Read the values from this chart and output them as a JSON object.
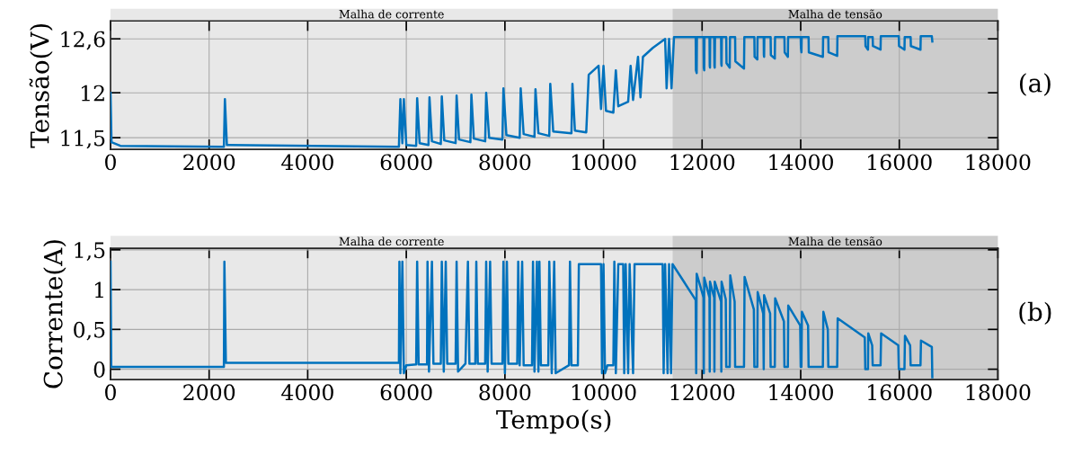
{
  "chart_data": [
    {
      "type": "line",
      "ylabel": "Tensão(V)",
      "annotations": [
        "(a)"
      ],
      "grid": true,
      "xlim": [
        0,
        18000
      ],
      "xticks": [
        0,
        2000,
        4000,
        6000,
        8000,
        10000,
        12000,
        14000,
        16000,
        18000
      ],
      "ylim": [
        11.37,
        12.8
      ],
      "yticks": [
        {
          "value": 11.5,
          "label": "11,5"
        },
        12,
        {
          "value": 12.6,
          "label": "12,6"
        }
      ],
      "bands": [
        {
          "axis": "x",
          "from": 0,
          "to": 11400,
          "label": "Malha de corrente",
          "color": "#e8e8e8"
        },
        {
          "axis": "x",
          "from": 11400,
          "to": 18000,
          "label": "Malha de tensão",
          "color": "#cccccc"
        }
      ],
      "series": [
        {
          "color": "#0072bd",
          "x": [
            0,
            20,
            200,
            2300,
            2320,
            2360,
            5850,
            5880,
            5920,
            5950,
            6000,
            6200,
            6220,
            6270,
            6450,
            6470,
            6520,
            6700,
            6720,
            6770,
            7000,
            7020,
            7070,
            7300,
            7320,
            7370,
            7600,
            7620,
            7680,
            7950,
            7970,
            8030,
            8300,
            8320,
            8380,
            8600,
            8620,
            8680,
            8900,
            8920,
            8980,
            9350,
            9370,
            9420,
            9650,
            9700,
            9900,
            9950,
            10000,
            10050,
            10200,
            10250,
            10300,
            10500,
            10550,
            10600,
            10700,
            10750,
            10800,
            11000,
            11250,
            11280,
            11330,
            11380,
            11430,
            11870,
            11875,
            11890,
            11895,
            12030,
            12035,
            12043,
            12048,
            12150,
            12155,
            12160,
            12165,
            12245,
            12250,
            12256,
            12262,
            12385,
            12390,
            12395,
            12400,
            12490,
            12495,
            12560,
            12566,
            12670,
            12675,
            12850,
            12857,
            13060,
            13065,
            13120,
            13125,
            13250,
            13253,
            13258,
            13262,
            13390,
            13395,
            13475,
            13480,
            13670,
            13675,
            13740,
            13745,
            14000,
            14005,
            14015,
            14020,
            14160,
            14165,
            14450,
            14455,
            14560,
            14565,
            14740,
            14745,
            15310,
            15315,
            15365,
            15370,
            15460,
            15465,
            15620,
            15625,
            15990,
            15995,
            16105,
            16110,
            16230,
            16235,
            16430,
            16435,
            16660,
            16670
          ],
          "values": [
            12.0,
            11.45,
            11.41,
            11.4,
            11.93,
            11.42,
            11.4,
            11.93,
            11.44,
            11.93,
            11.42,
            11.41,
            11.94,
            11.44,
            11.42,
            11.95,
            11.46,
            11.43,
            11.96,
            11.47,
            11.44,
            11.97,
            11.48,
            11.45,
            11.98,
            11.49,
            11.46,
            12.0,
            11.5,
            11.48,
            12.05,
            11.53,
            11.5,
            12.05,
            11.54,
            11.51,
            12.04,
            11.55,
            11.52,
            12.1,
            11.57,
            11.55,
            12.1,
            11.58,
            11.56,
            12.2,
            12.3,
            11.82,
            12.3,
            11.8,
            11.78,
            12.25,
            11.85,
            11.9,
            12.3,
            11.92,
            12.4,
            11.95,
            12.4,
            12.5,
            12.6,
            12.05,
            12.6,
            12.05,
            12.62,
            12.62,
            12.25,
            12.22,
            12.62,
            12.62,
            12.28,
            12.25,
            12.62,
            12.62,
            12.3,
            12.28,
            12.62,
            12.62,
            12.3,
            12.28,
            12.62,
            12.62,
            12.32,
            12.3,
            12.62,
            12.62,
            12.33,
            12.28,
            12.62,
            12.62,
            12.35,
            12.27,
            12.62,
            12.62,
            12.4,
            12.37,
            12.62,
            12.62,
            12.42,
            12.4,
            12.62,
            12.62,
            12.42,
            12.38,
            12.62,
            12.62,
            12.45,
            12.4,
            12.62,
            12.62,
            12.5,
            12.45,
            12.62,
            12.62,
            12.45,
            12.4,
            12.62,
            12.62,
            12.45,
            12.41,
            12.63,
            12.63,
            12.52,
            12.48,
            12.62,
            12.62,
            12.52,
            12.48,
            12.63,
            12.63,
            12.52,
            12.48,
            12.62,
            12.62,
            12.52,
            12.48,
            12.63,
            12.63,
            12.57
          ]
        }
      ]
    },
    {
      "type": "line",
      "xlabel": "Tempo(s)",
      "ylabel": "Corrente(A)",
      "annotations": [
        "(b)"
      ],
      "grid": true,
      "xlim": [
        0,
        18000
      ],
      "xticks": [
        0,
        2000,
        4000,
        6000,
        8000,
        10000,
        12000,
        14000,
        16000,
        18000
      ],
      "ylim": [
        -0.13,
        1.52
      ],
      "yticks": [
        0,
        {
          "value": 0.5,
          "label": "0,5"
        },
        1,
        {
          "value": 1.5,
          "label": "1,5"
        }
      ],
      "bands": [
        {
          "axis": "x",
          "from": 0,
          "to": 11400,
          "label": "Malha de corrente",
          "color": "#e8e8e8"
        },
        {
          "axis": "x",
          "from": 11400,
          "to": 18000,
          "label": "Malha de tensão",
          "color": "#cccccc"
        }
      ],
      "series": [
        {
          "color": "#0072bd",
          "x": [
            0,
            15,
            2300,
            2310,
            2340,
            5850,
            5860,
            5880,
            5920,
            5950,
            6000,
            6200,
            6220,
            6250,
            6420,
            6430,
            6460,
            6520,
            6550,
            6700,
            6720,
            6760,
            6800,
            6830,
            7000,
            7020,
            7050,
            7200,
            7250,
            7280,
            7400,
            7420,
            7450,
            7600,
            7620,
            7650,
            7700,
            7730,
            7950,
            7970,
            8000,
            8040,
            8070,
            8250,
            8270,
            8300,
            8350,
            8380,
            8550,
            8570,
            8600,
            8650,
            8680,
            8700,
            8730,
            8880,
            8900,
            8950,
            9000,
            9030,
            9300,
            9320,
            9350,
            9480,
            9500,
            9950,
            9970,
            10000,
            10030,
            10080,
            10200,
            10220,
            10250,
            10300,
            10400,
            10420,
            10450,
            10500,
            10530,
            10600,
            10630,
            11200,
            11220,
            11250,
            11300,
            11330,
            11370,
            11400,
            11870,
            11880,
            11890,
            12030,
            12035,
            12043,
            12150,
            12155,
            12160,
            12245,
            12250,
            12256,
            12385,
            12390,
            12395,
            12480,
            12490,
            12560,
            12571,
            12660,
            12670,
            12850,
            12862,
            13050,
            13060,
            13120,
            13127,
            13240,
            13250,
            13258,
            13380,
            13390,
            13475,
            13482,
            13660,
            13670,
            13740,
            13748,
            13990,
            14000,
            14015,
            14025,
            14150,
            14160,
            14450,
            14460,
            14550,
            14560,
            14740,
            14750,
            15300,
            15310,
            15365,
            15371,
            15450,
            15460,
            15620,
            15632,
            15980,
            15990,
            16105,
            16115,
            16220,
            16230,
            16430,
            16440,
            16660,
            16670
          ],
          "values": [
            1.35,
            0.03,
            0.03,
            1.35,
            0.08,
            0.08,
            1.35,
            -0.05,
            1.35,
            -0.05,
            0.05,
            0.06,
            1.35,
            0.06,
            0.06,
            1.35,
            -0.03,
            1.35,
            0.07,
            0.07,
            1.35,
            -0.03,
            1.35,
            0.07,
            0.07,
            1.35,
            -0.03,
            0.07,
            1.35,
            0.07,
            0.07,
            1.35,
            0.07,
            0.07,
            1.35,
            -0.03,
            1.35,
            0.07,
            0.07,
            1.35,
            -0.05,
            1.35,
            0.07,
            0.07,
            1.35,
            0.05,
            1.35,
            0.05,
            0.05,
            1.35,
            -0.03,
            1.35,
            -0.03,
            1.35,
            0.05,
            0.05,
            1.35,
            -0.05,
            1.35,
            -0.05,
            0.05,
            1.35,
            0.05,
            0.05,
            1.32,
            1.32,
            -0.05,
            1.32,
            -0.05,
            0.05,
            0.05,
            1.35,
            -0.05,
            1.32,
            1.32,
            -0.05,
            1.32,
            -0.05,
            1.32,
            -0.05,
            1.32,
            1.32,
            -0.05,
            1.32,
            -0.05,
            1.32,
            -0.05,
            1.32,
            0.87,
            -0.05,
            1.2,
            0.9,
            -0.05,
            1.15,
            0.9,
            -0.03,
            1.1,
            0.9,
            -0.03,
            1.1,
            0.85,
            -0.03,
            1.1,
            0.88,
            0.03,
            0.03,
            1.18,
            0.85,
            0.03,
            0.03,
            1.16,
            0.75,
            0.03,
            0.03,
            0.97,
            0.7,
            0.0,
            0.93,
            0.7,
            0.03,
            0.03,
            0.89,
            0.6,
            0.03,
            0.03,
            0.8,
            0.55,
            0.03,
            0.03,
            0.72,
            0.55,
            0.03,
            0.03,
            0.72,
            0.5,
            0.03,
            0.03,
            0.64,
            0.4,
            0.0,
            0.0,
            0.45,
            0.3,
            0.05,
            0.05,
            0.45,
            0.3,
            0.0,
            0.0,
            0.42,
            0.3,
            0.05,
            0.05,
            0.36,
            0.28,
            -0.1
          ]
        }
      ]
    }
  ]
}
